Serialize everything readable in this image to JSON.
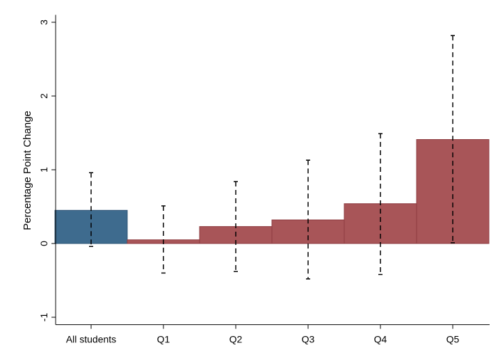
{
  "chart_data": {
    "type": "bar",
    "title": "",
    "xlabel": "",
    "ylabel": "Percentage Point Change",
    "ylim": [
      -1.1,
      3.1
    ],
    "yticks": [
      -1,
      0,
      1,
      2,
      3
    ],
    "grid": false,
    "legend": "none",
    "categories": [
      "All students",
      "Q1",
      "Q2",
      "Q3",
      "Q4",
      "Q5"
    ],
    "values": [
      0.45,
      0.05,
      0.23,
      0.32,
      0.54,
      1.41
    ],
    "ci_lower": [
      -0.04,
      -0.4,
      -0.38,
      -0.48,
      -0.42,
      0.01
    ],
    "ci_upper": [
      0.96,
      0.51,
      0.84,
      1.13,
      1.49,
      2.82
    ],
    "bar_colors": [
      "#3e6b8e",
      "#a85558",
      "#a85558",
      "#a85558",
      "#a85558",
      "#a85558"
    ]
  }
}
